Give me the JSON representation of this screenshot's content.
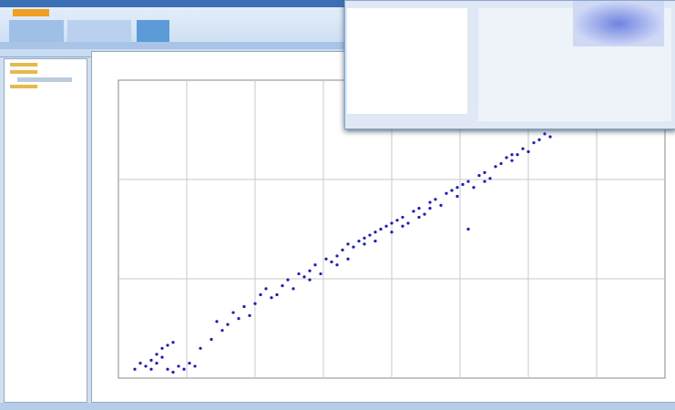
{
  "chart_data": {
    "type": "scatter",
    "color": "#1a1acc",
    "grid": true,
    "xlim": [
      0,
      100
    ],
    "ylim": [
      0,
      100
    ],
    "x": [
      3,
      4,
      5,
      6,
      7,
      8,
      9,
      10,
      8,
      9,
      10,
      11,
      12,
      13,
      14,
      7,
      6,
      15,
      17,
      19,
      20,
      22,
      18,
      21,
      23,
      25,
      24,
      26,
      28,
      27,
      30,
      29,
      31,
      32,
      33,
      34,
      35,
      36,
      37,
      38,
      39,
      40,
      41,
      42,
      43,
      44,
      45,
      46,
      47,
      48,
      49,
      50,
      51,
      52,
      53,
      54,
      55,
      56,
      57,
      58,
      59,
      60,
      61,
      62,
      63,
      64,
      65,
      66,
      67,
      68,
      69,
      70,
      71,
      72,
      73,
      74,
      75,
      76,
      77,
      78,
      79,
      64,
      35,
      40,
      45,
      50,
      55,
      42,
      47,
      52,
      57,
      62,
      67,
      72
    ],
    "values": [
      3,
      5,
      4,
      6,
      8,
      10,
      11,
      12,
      7,
      3,
      2,
      4,
      3,
      5,
      4,
      5,
      3,
      10,
      13,
      16,
      18,
      20,
      19,
      22,
      24,
      25,
      21,
      28,
      27,
      30,
      31,
      28,
      33,
      30,
      35,
      34,
      36,
      38,
      35,
      40,
      39,
      41,
      43,
      40,
      44,
      46,
      45,
      48,
      46,
      50,
      51,
      49,
      53,
      54,
      52,
      56,
      57,
      55,
      59,
      60,
      58,
      62,
      63,
      61,
      65,
      66,
      64,
      68,
      69,
      67,
      71,
      72,
      74,
      73,
      75,
      77,
      76,
      79,
      80,
      82,
      81,
      50,
      33,
      38,
      47,
      52,
      54,
      45,
      49,
      51,
      57,
      64,
      66,
      75
    ]
  }
}
